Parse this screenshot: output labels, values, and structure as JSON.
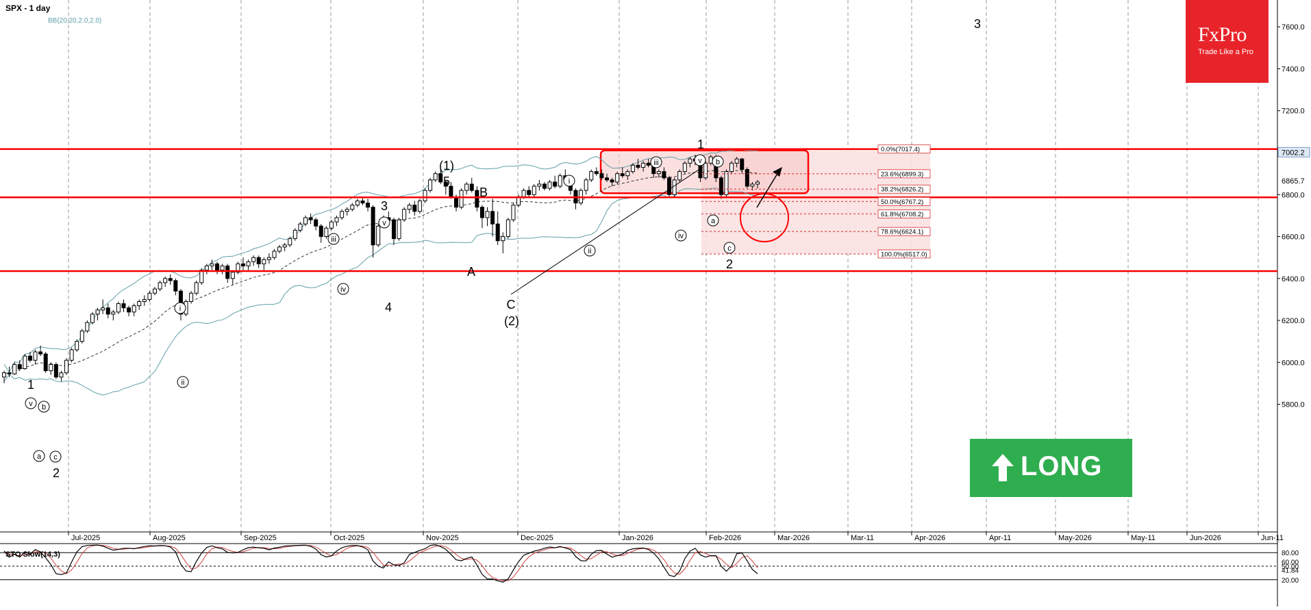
{
  "header": {
    "symbol_title": "SPX - 1 day",
    "indicator_label": "BB(20,20,2.0,2.0)"
  },
  "stoch_label": "STO Slow(14,3)",
  "brand": {
    "name": "FxPro",
    "tagline": "Trade Like a Pro"
  },
  "signal": {
    "label": "LONG",
    "color": "#2fae4f"
  },
  "colors": {
    "resistance_line": "#ff0000",
    "bollinger": "#5e9ea6",
    "candle": "#000000",
    "box_fill": "#f7d3d3"
  },
  "chart_data": {
    "type": "candlestick",
    "symbol": "SPX",
    "timeframe": "1 day",
    "x_tick_labels": [
      "Jul-2025",
      "Aug-2025",
      "Sep-2025",
      "Oct-2025",
      "Nov-2025",
      "Dec-2025",
      "Jan-2026",
      "Feb-2026",
      "Mar-2026",
      "Mar-11",
      "Apr-2026",
      "Apr-11",
      "May-2026",
      "May-11",
      "Jun-2026",
      "Jun-11"
    ],
    "y_tick_labels": [
      "7600.0",
      "7400.0",
      "7200.0",
      "6800.0",
      "6600.0",
      "6400.0",
      "6200.0",
      "6000.0",
      "5800.0"
    ],
    "ylim": [
      5620,
      7660
    ],
    "price_labels": [
      {
        "text": "7002.2",
        "value": 7002.2,
        "highlight": true
      },
      {
        "text": "6865.7",
        "value": 6865.7,
        "highlight": false
      }
    ],
    "horizontal_levels": [
      7017,
      6787,
      6435
    ],
    "fibonacci": [
      {
        "label": "0.0%(7017.4)",
        "value": 7017.4
      },
      {
        "label": "23.6%(6899.3)",
        "value": 6899.3
      },
      {
        "label": "38.2%(6826.2)",
        "value": 6826.2
      },
      {
        "label": "50.0%(6767.2)",
        "value": 6767.2
      },
      {
        "label": "61.8%(6708.2)",
        "value": 6708.2
      },
      {
        "label": "78.6%(6624.1)",
        "value": 6624.1
      },
      {
        "label": "100.0%(6517.0)",
        "value": 6517.0
      }
    ],
    "candles": [
      [
        5930,
        5960,
        5900,
        5950
      ],
      [
        5950,
        5980,
        5930,
        5945
      ],
      [
        5945,
        6000,
        5940,
        5990
      ],
      [
        5990,
        6010,
        5960,
        5970
      ],
      [
        5970,
        6040,
        5965,
        6030
      ],
      [
        6030,
        6050,
        6000,
        6010
      ],
      [
        6010,
        6060,
        5990,
        6050
      ],
      [
        6050,
        6080,
        6030,
        6040
      ],
      [
        6040,
        6050,
        5950,
        5960
      ],
      [
        5960,
        6000,
        5940,
        5990
      ],
      [
        5990,
        6000,
        5920,
        5930
      ],
      [
        5930,
        5960,
        5910,
        5950
      ],
      [
        5950,
        6020,
        5940,
        6010
      ],
      [
        6010,
        6070,
        6000,
        6060
      ],
      [
        6060,
        6110,
        6050,
        6100
      ],
      [
        6100,
        6160,
        6090,
        6150
      ],
      [
        6150,
        6200,
        6140,
        6190
      ],
      [
        6190,
        6240,
        6180,
        6230
      ],
      [
        6230,
        6260,
        6200,
        6250
      ],
      [
        6250,
        6300,
        6230,
        6260
      ],
      [
        6260,
        6280,
        6210,
        6230
      ],
      [
        6230,
        6250,
        6200,
        6240
      ],
      [
        6240,
        6290,
        6230,
        6280
      ],
      [
        6280,
        6300,
        6240,
        6260
      ],
      [
        6260,
        6270,
        6220,
        6240
      ],
      [
        6240,
        6280,
        6220,
        6270
      ],
      [
        6270,
        6300,
        6250,
        6290
      ],
      [
        6290,
        6320,
        6270,
        6300
      ],
      [
        6300,
        6340,
        6290,
        6330
      ],
      [
        6330,
        6360,
        6320,
        6350
      ],
      [
        6350,
        6390,
        6340,
        6380
      ],
      [
        6380,
        6410,
        6360,
        6400
      ],
      [
        6400,
        6420,
        6370,
        6390
      ],
      [
        6390,
        6400,
        6320,
        6340
      ],
      [
        6340,
        6350,
        6200,
        6230
      ],
      [
        6230,
        6300,
        6220,
        6290
      ],
      [
        6290,
        6340,
        6280,
        6330
      ],
      [
        6330,
        6390,
        6320,
        6380
      ],
      [
        6380,
        6450,
        6370,
        6440
      ],
      [
        6440,
        6470,
        6420,
        6460
      ],
      [
        6460,
        6490,
        6440,
        6470
      ],
      [
        6470,
        6480,
        6420,
        6440
      ],
      [
        6440,
        6470,
        6420,
        6460
      ],
      [
        6460,
        6470,
        6380,
        6400
      ],
      [
        6400,
        6440,
        6370,
        6430
      ],
      [
        6430,
        6480,
        6420,
        6470
      ],
      [
        6470,
        6500,
        6440,
        6460
      ],
      [
        6460,
        6490,
        6440,
        6480
      ],
      [
        6480,
        6510,
        6460,
        6500
      ],
      [
        6500,
        6510,
        6450,
        6470
      ],
      [
        6470,
        6500,
        6440,
        6490
      ],
      [
        6490,
        6520,
        6470,
        6500
      ],
      [
        6500,
        6540,
        6490,
        6530
      ],
      [
        6530,
        6560,
        6520,
        6550
      ],
      [
        6550,
        6570,
        6530,
        6560
      ],
      [
        6560,
        6600,
        6550,
        6590
      ],
      [
        6590,
        6640,
        6580,
        6630
      ],
      [
        6630,
        6670,
        6620,
        6660
      ],
      [
        6660,
        6700,
        6650,
        6690
      ],
      [
        6690,
        6710,
        6660,
        6680
      ],
      [
        6680,
        6690,
        6630,
        6650
      ],
      [
        6650,
        6660,
        6570,
        6600
      ],
      [
        6600,
        6650,
        6590,
        6640
      ],
      [
        6640,
        6680,
        6630,
        6670
      ],
      [
        6670,
        6700,
        6650,
        6690
      ],
      [
        6690,
        6730,
        6680,
        6720
      ],
      [
        6720,
        6740,
        6700,
        6730
      ],
      [
        6730,
        6760,
        6720,
        6750
      ],
      [
        6750,
        6780,
        6740,
        6770
      ],
      [
        6770,
        6790,
        6750,
        6760
      ],
      [
        6760,
        6780,
        6720,
        6740
      ],
      [
        6740,
        6750,
        6500,
        6560
      ],
      [
        6560,
        6660,
        6550,
        6650
      ],
      [
        6650,
        6700,
        6640,
        6690
      ],
      [
        6690,
        6720,
        6670,
        6680
      ],
      [
        6680,
        6690,
        6560,
        6590
      ],
      [
        6590,
        6690,
        6580,
        6680
      ],
      [
        6680,
        6740,
        6670,
        6730
      ],
      [
        6730,
        6760,
        6710,
        6750
      ],
      [
        6750,
        6770,
        6700,
        6720
      ],
      [
        6720,
        6780,
        6710,
        6770
      ],
      [
        6770,
        6830,
        6760,
        6820
      ],
      [
        6820,
        6880,
        6810,
        6870
      ],
      [
        6870,
        6910,
        6860,
        6900
      ],
      [
        6900,
        6920,
        6850,
        6860
      ],
      [
        6860,
        6870,
        6800,
        6840
      ],
      [
        6840,
        6860,
        6780,
        6790
      ],
      [
        6790,
        6800,
        6720,
        6740
      ],
      [
        6740,
        6830,
        6730,
        6820
      ],
      [
        6820,
        6860,
        6800,
        6850
      ],
      [
        6850,
        6880,
        6810,
        6820
      ],
      [
        6820,
        6840,
        6720,
        6740
      ],
      [
        6740,
        6750,
        6640,
        6690
      ],
      [
        6690,
        6740,
        6650,
        6720
      ],
      [
        6720,
        6780,
        6600,
        6660
      ],
      [
        6660,
        6720,
        6560,
        6580
      ],
      [
        6580,
        6620,
        6520,
        6600
      ],
      [
        6600,
        6690,
        6590,
        6680
      ],
      [
        6680,
        6760,
        6670,
        6750
      ],
      [
        6750,
        6800,
        6740,
        6790
      ],
      [
        6790,
        6830,
        6780,
        6820
      ],
      [
        6820,
        6840,
        6790,
        6800
      ],
      [
        6800,
        6850,
        6790,
        6840
      ],
      [
        6840,
        6870,
        6820,
        6850
      ],
      [
        6850,
        6860,
        6820,
        6830
      ],
      [
        6830,
        6870,
        6820,
        6860
      ],
      [
        6860,
        6890,
        6830,
        6840
      ],
      [
        6840,
        6900,
        6830,
        6890
      ],
      [
        6890,
        6920,
        6860,
        6870
      ],
      [
        6870,
        6880,
        6800,
        6820
      ],
      [
        6820,
        6830,
        6730,
        6760
      ],
      [
        6760,
        6830,
        6750,
        6820
      ],
      [
        6820,
        6880,
        6800,
        6870
      ],
      [
        6870,
        6920,
        6860,
        6910
      ],
      [
        6910,
        6930,
        6890,
        6900
      ],
      [
        6900,
        6920,
        6870,
        6880
      ],
      [
        6880,
        6900,
        6860,
        6870
      ],
      [
        6870,
        6880,
        6840,
        6860
      ],
      [
        6860,
        6910,
        6850,
        6900
      ],
      [
        6900,
        6930,
        6880,
        6890
      ],
      [
        6890,
        6920,
        6870,
        6910
      ],
      [
        6910,
        6950,
        6900,
        6940
      ],
      [
        6940,
        6970,
        6920,
        6930
      ],
      [
        6930,
        6960,
        6910,
        6950
      ],
      [
        6950,
        6970,
        6930,
        6940
      ],
      [
        6940,
        6950,
        6880,
        6900
      ],
      [
        6900,
        6920,
        6880,
        6910
      ],
      [
        6910,
        6930,
        6870,
        6880
      ],
      [
        6880,
        6890,
        6790,
        6800
      ],
      [
        6800,
        6880,
        6790,
        6870
      ],
      [
        6870,
        6920,
        6860,
        6910
      ],
      [
        6910,
        6960,
        6900,
        6950
      ],
      [
        6950,
        6980,
        6930,
        6970
      ],
      [
        6970,
        6990,
        6940,
        6960
      ],
      [
        6960,
        6980,
        6860,
        6880
      ],
      [
        6880,
        6960,
        6870,
        6950
      ],
      [
        6950,
        6990,
        6940,
        6980
      ],
      [
        6980,
        6990,
        6860,
        6880
      ],
      [
        6880,
        6890,
        6780,
        6800
      ],
      [
        6800,
        6920,
        6790,
        6910
      ],
      [
        6910,
        6960,
        6900,
        6950
      ],
      [
        6950,
        6980,
        6930,
        6970
      ],
      [
        6970,
        6975,
        6900,
        6920
      ],
      [
        6920,
        6930,
        6830,
        6840
      ],
      [
        6840,
        6860,
        6820,
        6850
      ],
      [
        6850,
        6870,
        6830,
        6860
      ]
    ]
  }
}
